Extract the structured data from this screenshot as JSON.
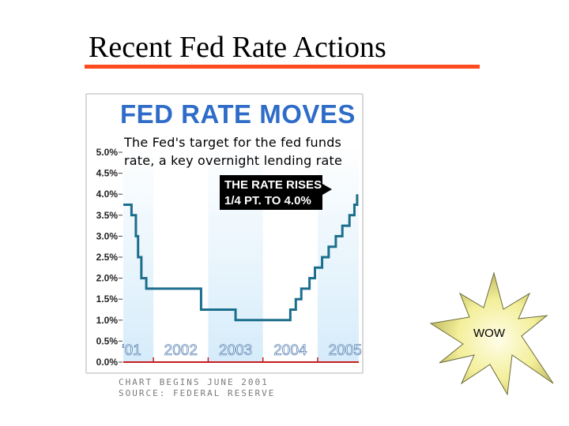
{
  "slide": {
    "title": "Recent Fed Rate Actions"
  },
  "chart_data": {
    "type": "line",
    "title": "FED RATE MOVES",
    "subtitle_lines": [
      "The Fed's target for the fed funds",
      "rate, a key overnight lending rate"
    ],
    "callout_lines": [
      "THE RATE RISES",
      "1/4 PT. TO 4.0%"
    ],
    "yticks": [
      "0.0%",
      "0.5%",
      "1.0%",
      "1.5%",
      "2.0%",
      "2.5%",
      "3.0%",
      "3.5%",
      "4.0%",
      "4.5%",
      "5.0%"
    ],
    "ylim": [
      0,
      5
    ],
    "xlim": [
      2001.45,
      2005.75
    ],
    "x_labels": [
      {
        "text": "'01",
        "x": 2001.6
      },
      {
        "text": "2002",
        "x": 2002.5
      },
      {
        "text": "2003",
        "x": 2003.5
      },
      {
        "text": "2004",
        "x": 2004.5
      },
      {
        "text": "2005",
        "x": 2005.5
      }
    ],
    "year_bands": [
      {
        "start": 2001.45,
        "end": 2002.0
      },
      {
        "start": 2003.0,
        "end": 2004.0
      },
      {
        "start": 2005.0,
        "end": 2005.75
      }
    ],
    "series": [
      {
        "points": [
          [
            2001.45,
            3.75
          ],
          [
            2001.6,
            3.5
          ],
          [
            2001.68,
            3.0
          ],
          [
            2001.72,
            2.5
          ],
          [
            2001.78,
            2.0
          ],
          [
            2001.87,
            1.75
          ],
          [
            2002.87,
            1.25
          ],
          [
            2003.5,
            1.0
          ],
          [
            2004.5,
            1.25
          ],
          [
            2004.6,
            1.5
          ],
          [
            2004.7,
            1.75
          ],
          [
            2004.85,
            2.0
          ],
          [
            2004.95,
            2.25
          ],
          [
            2005.08,
            2.5
          ],
          [
            2005.2,
            2.75
          ],
          [
            2005.33,
            3.0
          ],
          [
            2005.45,
            3.25
          ],
          [
            2005.58,
            3.5
          ],
          [
            2005.67,
            3.75
          ],
          [
            2005.72,
            4.0
          ]
        ]
      }
    ],
    "footnote_lines": [
      "CHART BEGINS JUNE 2001",
      "SOURCE: FEDERAL RESERVE"
    ],
    "colors": {
      "title": "#2e6cc8",
      "line": "#1b6e8c",
      "band": "#d6ecfa",
      "baseline": "#c61c1c",
      "axis_text": "#222222"
    }
  },
  "badge": {
    "label": "WOW"
  }
}
